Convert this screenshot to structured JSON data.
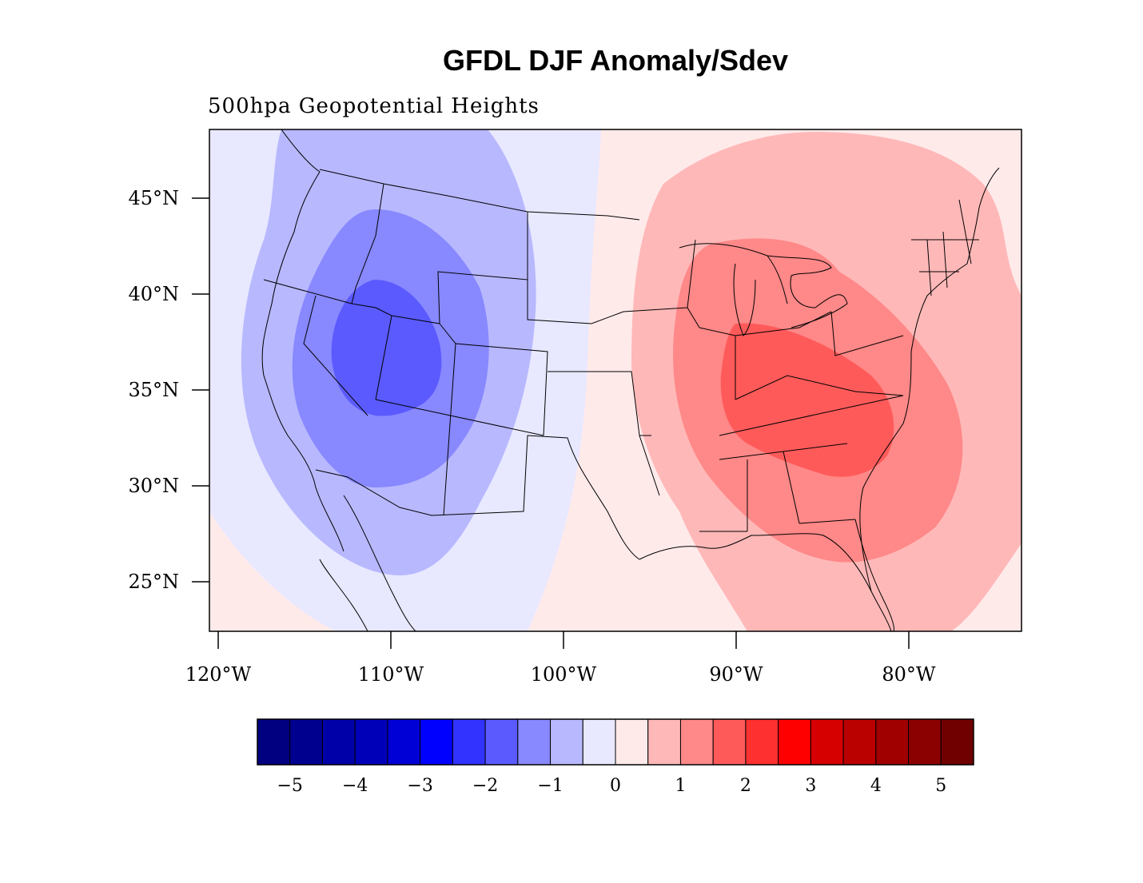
{
  "title": "GFDL DJF Anomaly/Sdev",
  "subtitle": "500hpa Geopotential Heights",
  "chart_data": {
    "type": "heatmap",
    "field": "normalized anomaly",
    "lon_range": [
      -120.5,
      -73.5
    ],
    "lat_range": [
      22.5,
      48.5
    ],
    "lat_ticks": [
      {
        "value": 45,
        "label": "45°N"
      },
      {
        "value": 40,
        "label": "40°N"
      },
      {
        "value": 35,
        "label": "35°N"
      },
      {
        "value": 30,
        "label": "30°N"
      },
      {
        "value": 25,
        "label": "25°N"
      }
    ],
    "lon_ticks": [
      {
        "value": -120,
        "label": "120°W"
      },
      {
        "value": -110,
        "label": "110°W"
      },
      {
        "value": -100,
        "label": "100°W"
      },
      {
        "value": -90,
        "label": "90°W"
      },
      {
        "value": -80,
        "label": "80°W"
      }
    ],
    "anomaly_centers": [
      {
        "lon": -110.5,
        "lat": 37.5,
        "value": -2.3
      },
      {
        "lon": -86.5,
        "lat": 35.0,
        "value": 2.1
      }
    ],
    "colorbar": {
      "colors": [
        "#000080",
        "#00008f",
        "#0000a8",
        "#0000b8",
        "#0000d6",
        "#0000ff",
        "#3333ff",
        "#5a5aff",
        "#8888ff",
        "#b8b8ff",
        "#e8e8ff",
        "#ffeaea",
        "#ffb8b8",
        "#ff8888",
        "#ff5a5a",
        "#ff3030",
        "#ff0000",
        "#d60000",
        "#bb0000",
        "#a00000",
        "#8b0000",
        "#700000"
      ],
      "tick_values": [
        -5,
        -4,
        -3,
        -2,
        -1,
        0,
        1,
        2,
        3,
        4,
        5
      ],
      "tick_labels": [
        "−5",
        "−4",
        "−3",
        "−2",
        "−1",
        "0",
        "1",
        "2",
        "3",
        "4",
        "5"
      ]
    }
  }
}
